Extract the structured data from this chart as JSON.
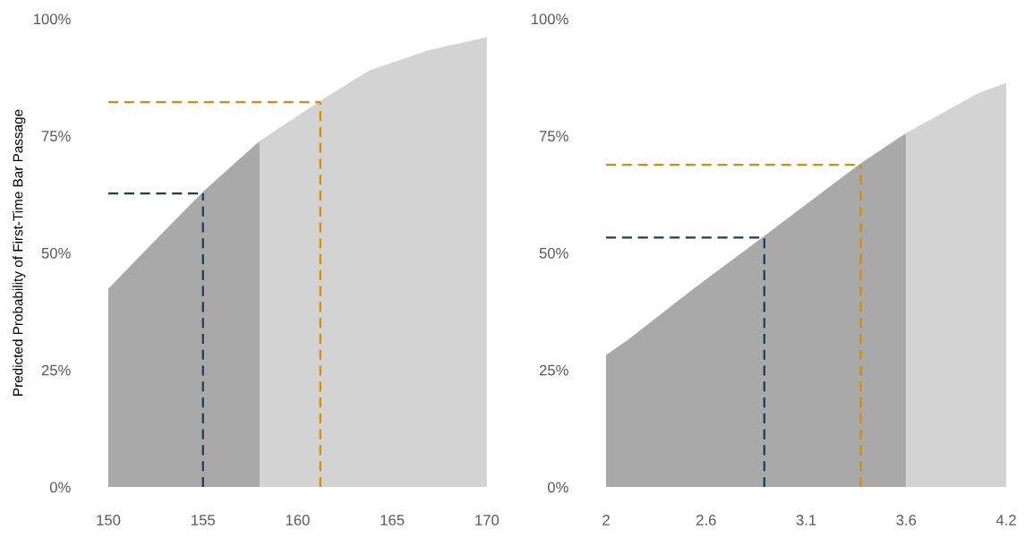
{
  "chart_data": [
    {
      "type": "area",
      "ylabel": "Predicted Probability of First-Time Bar Passage",
      "series": [
        {
          "color": "#a9a9a9",
          "x": [
            150,
            152.5,
            155.0,
            158.0
          ],
          "values": [
            42,
            52.4,
            62.7,
            73.6
          ]
        },
        {
          "color": "#d3d3d3",
          "x": [
            158.0,
            161.2,
            163.8,
            167.0,
            170
          ],
          "values": [
            73.6,
            82.2,
            88.7,
            93.1,
            95.8
          ]
        }
      ],
      "xlim": [
        150,
        170
      ],
      "xticks": [
        150,
        155,
        160,
        165,
        170
      ],
      "ylim": [
        0,
        100
      ],
      "yticks": [
        {
          "value": 0,
          "label": "0%"
        },
        {
          "value": 25,
          "label": "25%"
        },
        {
          "value": 50,
          "label": "50%"
        },
        {
          "value": 75,
          "label": "75%"
        },
        {
          "value": 100,
          "label": "100%"
        }
      ],
      "ref_lines": [
        {
          "axis": "x",
          "value": 155.0,
          "color": "#1f3b57",
          "line_style": "dashed"
        },
        {
          "axis": "y",
          "value": 62.7,
          "color": "#1f3b57",
          "line_style": "dashed"
        },
        {
          "axis": "x",
          "value": 161.2,
          "color": "#d98c00",
          "line_style": "dashed"
        },
        {
          "axis": "y",
          "value": 82.2,
          "color": "#d98c00",
          "line_style": "dashed"
        }
      ],
      "grid": false,
      "legend": false
    },
    {
      "type": "area",
      "series": [
        {
          "color": "#a9a9a9",
          "x": [
            2,
            2.13,
            2.49,
            2.87,
            3.4,
            3.65
          ],
          "values": [
            27.9,
            31.4,
            42.3,
            53.3,
            68.8,
            75.3
          ]
        },
        {
          "color": "#d3d3d3",
          "x": [
            3.65,
            4.05,
            4.2
          ],
          "values": [
            75.3,
            83.9,
            86.0
          ]
        }
      ],
      "xlim": [
        2,
        4.2
      ],
      "xticks": [
        2,
        {
          "value": 2.55,
          "label": "2.6"
        },
        3.1,
        {
          "value": 3.65,
          "label": "3.6"
        },
        4.2
      ],
      "ylim": [
        0,
        100
      ],
      "yticks": [
        {
          "value": 0,
          "label": "0%"
        },
        {
          "value": 25,
          "label": "25%"
        },
        {
          "value": 50,
          "label": "50%"
        },
        {
          "value": 75,
          "label": "75%"
        },
        {
          "value": 100,
          "label": "100%"
        }
      ],
      "ref_lines": [
        {
          "axis": "x",
          "value": 2.87,
          "color": "#1f3b57",
          "line_style": "dashed"
        },
        {
          "axis": "y",
          "value": 53.3,
          "color": "#1f3b57",
          "line_style": "dashed"
        },
        {
          "axis": "x",
          "value": 3.4,
          "color": "#d98c00",
          "line_style": "dashed"
        },
        {
          "axis": "y",
          "value": 68.8,
          "color": "#d98c00",
          "line_style": "dashed"
        }
      ],
      "grid": false,
      "legend": false
    }
  ]
}
